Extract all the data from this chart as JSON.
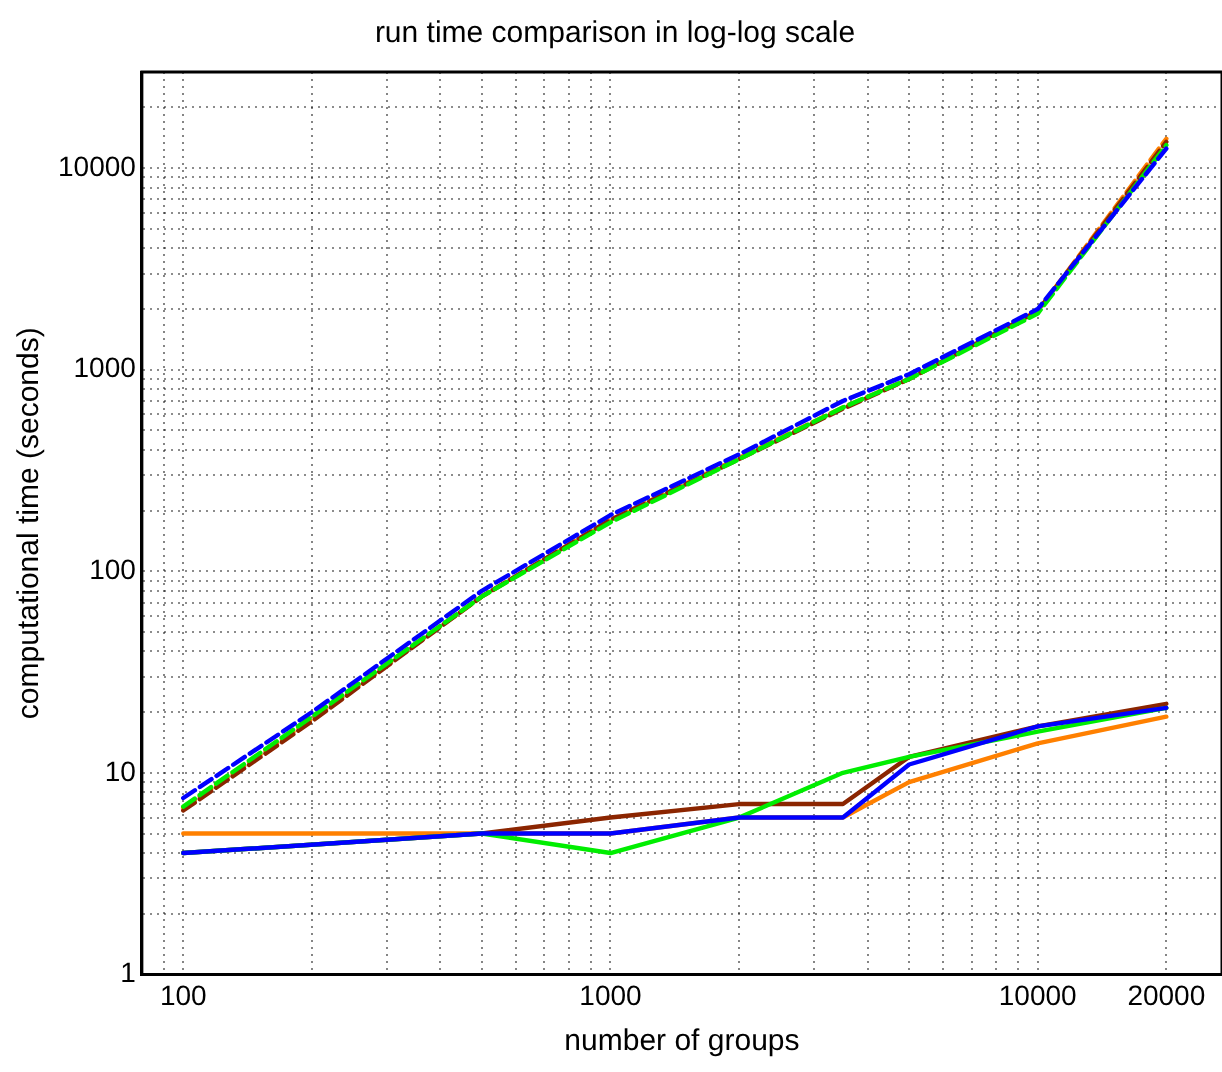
{
  "chart_data": {
    "type": "line",
    "title": "run time comparison in log-log scale",
    "xlabel": "number of groups",
    "ylabel": "computational time (seconds)",
    "log": "xy",
    "grid": true,
    "legend": false,
    "marker": "none",
    "xlim": [
      80,
      27000
    ],
    "ylim": [
      1,
      30000
    ],
    "xticks": [
      {
        "value": 90,
        "label": null
      },
      100,
      {
        "value": 200,
        "label": null
      },
      {
        "value": 300,
        "label": null
      },
      {
        "value": 400,
        "label": null
      },
      {
        "value": 500,
        "label": null
      },
      {
        "value": 600,
        "label": null
      },
      {
        "value": 700,
        "label": null
      },
      {
        "value": 800,
        "label": null
      },
      {
        "value": 900,
        "label": null
      },
      1000,
      {
        "value": 2000,
        "label": null
      },
      {
        "value": 3000,
        "label": null
      },
      {
        "value": 4000,
        "label": null
      },
      {
        "value": 5000,
        "label": null
      },
      {
        "value": 6000,
        "label": null
      },
      {
        "value": 7000,
        "label": null
      },
      {
        "value": 8000,
        "label": null
      },
      {
        "value": 9000,
        "label": null
      },
      10000,
      20000
    ],
    "yticks": [
      1,
      {
        "value": 2,
        "label": null
      },
      {
        "value": 3,
        "label": null
      },
      {
        "value": 4,
        "label": null
      },
      {
        "value": 5,
        "label": null
      },
      {
        "value": 6,
        "label": null
      },
      {
        "value": 7,
        "label": null
      },
      {
        "value": 8,
        "label": null
      },
      {
        "value": 9,
        "label": null
      },
      10,
      {
        "value": 20,
        "label": null
      },
      {
        "value": 30,
        "label": null
      },
      {
        "value": 40,
        "label": null
      },
      {
        "value": 50,
        "label": null
      },
      {
        "value": 60,
        "label": null
      },
      {
        "value": 70,
        "label": null
      },
      {
        "value": 80,
        "label": null
      },
      {
        "value": 90,
        "label": null
      },
      100,
      {
        "value": 200,
        "label": null
      },
      {
        "value": 300,
        "label": null
      },
      {
        "value": 400,
        "label": null
      },
      {
        "value": 500,
        "label": null
      },
      {
        "value": 600,
        "label": null
      },
      {
        "value": 700,
        "label": null
      },
      {
        "value": 800,
        "label": null
      },
      {
        "value": 900,
        "label": null
      },
      1000,
      {
        "value": 2000,
        "label": null
      },
      {
        "value": 3000,
        "label": null
      },
      {
        "value": 4000,
        "label": null
      },
      {
        "value": 5000,
        "label": null
      },
      {
        "value": 6000,
        "label": null
      },
      {
        "value": 7000,
        "label": null
      },
      {
        "value": 8000,
        "label": null
      },
      {
        "value": 9000,
        "label": null
      },
      10000,
      {
        "value": 20000,
        "label": null
      }
    ],
    "series": [
      {
        "color": "#ff8000",
        "line_style": "dashed",
        "x": [
          100,
          200,
          500,
          1000,
          2000,
          3500,
          5000,
          10000,
          20000
        ],
        "values": [
          6.7,
          18.5,
          75,
          180,
          365,
          650,
          900,
          1950,
          14000
        ]
      },
      {
        "color": "#8b2500",
        "line_style": "dashed",
        "x": [
          100,
          200,
          500,
          1000,
          2000,
          3500,
          5000,
          10000,
          20000
        ],
        "values": [
          6.5,
          18,
          75,
          180,
          360,
          640,
          900,
          1950,
          13500
        ]
      },
      {
        "color": "#00ee00",
        "line_style": "dashed",
        "x": [
          100,
          200,
          500,
          1000,
          2000,
          3500,
          5000,
          10000,
          20000
        ],
        "values": [
          6.8,
          19,
          75,
          175,
          360,
          650,
          900,
          1900,
          13000
        ]
      },
      {
        "color": "#0000ff",
        "line_style": "dashed",
        "x": [
          100,
          200,
          500,
          1000,
          2000,
          3500,
          5000,
          10000,
          20000
        ],
        "values": [
          7.5,
          20,
          80,
          190,
          380,
          700,
          950,
          2000,
          12500
        ]
      },
      {
        "color": "#ff8000",
        "line_style": "solid",
        "x": [
          100,
          500,
          1000,
          2000,
          3500,
          5000,
          10000,
          20000
        ],
        "values": [
          5,
          5,
          5,
          6,
          6,
          9,
          14,
          19
        ]
      },
      {
        "color": "#8b2500",
        "line_style": "solid",
        "x": [
          100,
          500,
          1000,
          2000,
          3500,
          5000,
          10000,
          20000
        ],
        "values": [
          4,
          5,
          6,
          7,
          7,
          12,
          17,
          22
        ]
      },
      {
        "color": "#00ee00",
        "line_style": "solid",
        "x": [
          100,
          500,
          1000,
          2000,
          3500,
          5000,
          10000,
          20000
        ],
        "values": [
          4,
          5,
          4,
          6,
          10,
          12,
          16,
          21
        ]
      },
      {
        "color": "#0000ff",
        "line_style": "solid",
        "x": [
          100,
          500,
          1000,
          2000,
          3500,
          5000,
          10000,
          20000
        ],
        "values": [
          4,
          5,
          5,
          6,
          6,
          11,
          17,
          21
        ]
      }
    ]
  }
}
